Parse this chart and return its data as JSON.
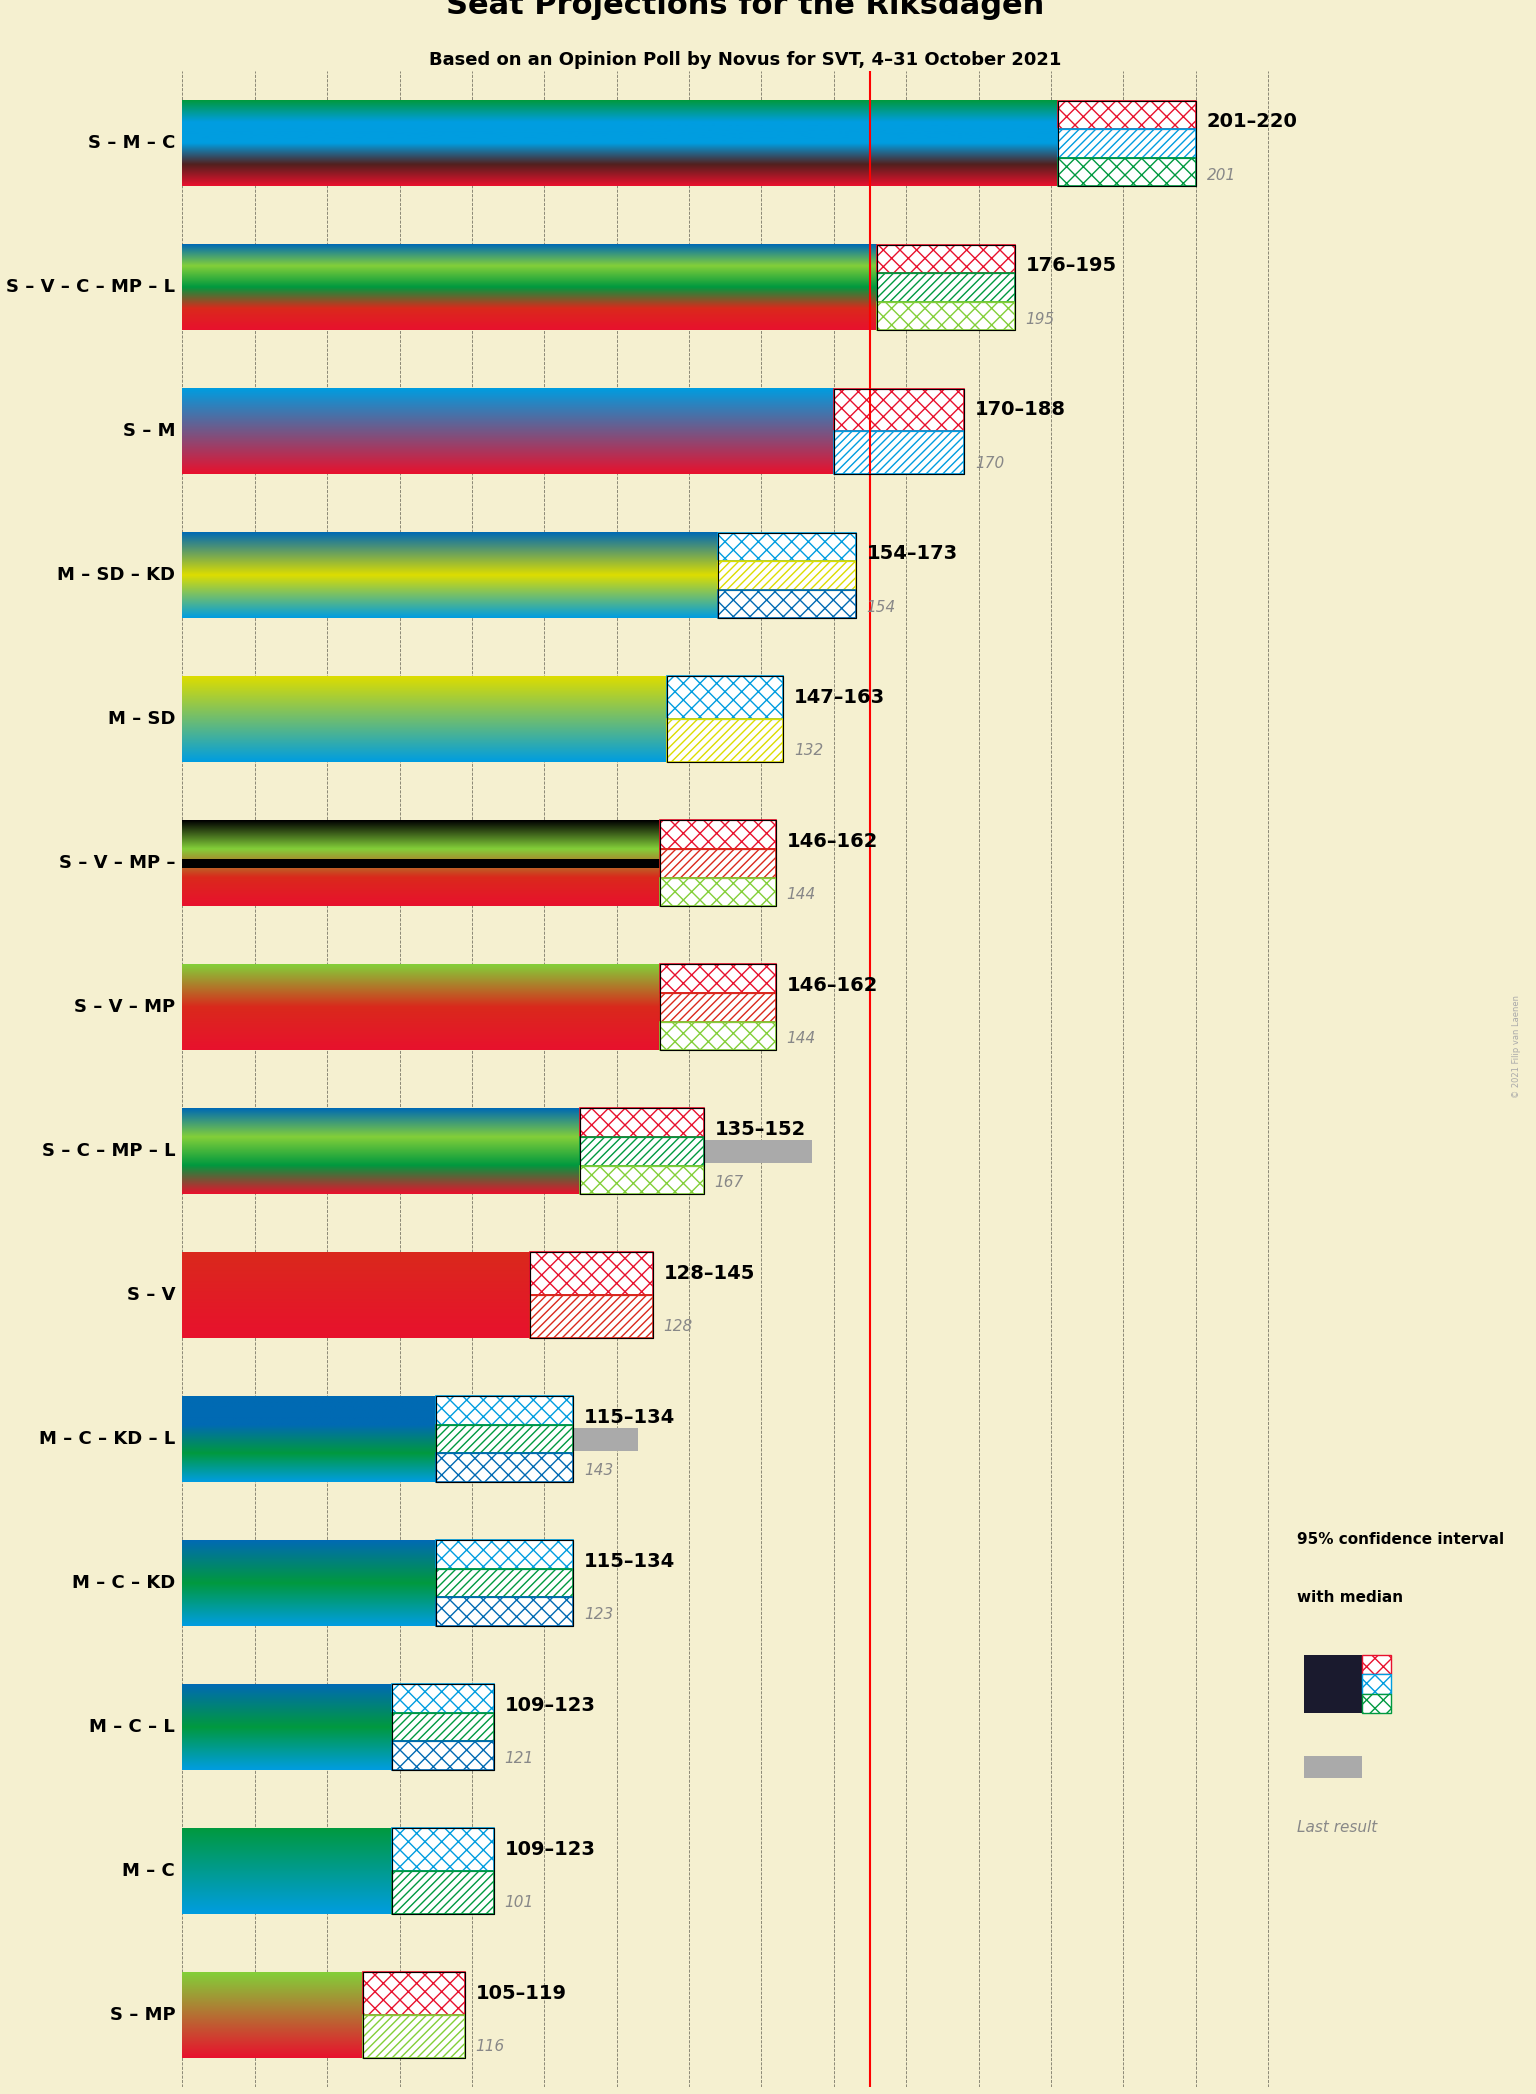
{
  "title": "Seat Projections for the Riksdagen",
  "subtitle": "Based on an Opinion Poll by Novus for SVT, 4–31 October 2021",
  "copyright": "© 2021 Filip van Laenen",
  "background_color": "#f5f0d0",
  "majority_line": 175,
  "x_min": 80,
  "x_max": 230,
  "grid_ticks": [
    80,
    90,
    100,
    110,
    120,
    130,
    140,
    150,
    160,
    170,
    180,
    190,
    200,
    210,
    220,
    230
  ],
  "coalitions": [
    {
      "name": "S – M – C",
      "underline": false,
      "ci_low": 201,
      "ci_high": 220,
      "median": 201,
      "last_result": 201,
      "ci_label": "201–220",
      "party_colors": [
        "#E8112d",
        "#52201E",
        "#009DE0",
        "#009DE0",
        "#00993F"
      ],
      "hatch_colors": [
        "#E8112d",
        "#009DE0",
        "#00993F"
      ]
    },
    {
      "name": "S – V – C – MP – L",
      "underline": true,
      "ci_low": 176,
      "ci_high": 195,
      "median": 195,
      "last_result": 195,
      "ci_label": "176–195",
      "party_colors": [
        "#E8112d",
        "#DA291C",
        "#00993F",
        "#83CF39",
        "#006AB3"
      ],
      "hatch_colors": [
        "#E8112d",
        "#00993F",
        "#83CF39"
      ]
    },
    {
      "name": "S – M",
      "underline": false,
      "ci_low": 170,
      "ci_high": 188,
      "median": 170,
      "last_result": 170,
      "ci_label": "170–188",
      "party_colors": [
        "#E8112d",
        "#009DE0"
      ],
      "hatch_colors": [
        "#E8112d",
        "#009DE0"
      ]
    },
    {
      "name": "M – SD – KD",
      "underline": false,
      "ci_low": 154,
      "ci_high": 173,
      "median": 154,
      "last_result": 154,
      "ci_label": "154–173",
      "party_colors": [
        "#009DE0",
        "#DDDD00",
        "#006AB3"
      ],
      "hatch_colors": [
        "#009DE0",
        "#DDDD00",
        "#006AB3"
      ]
    },
    {
      "name": "M – SD",
      "underline": false,
      "ci_low": 147,
      "ci_high": 163,
      "median": 132,
      "last_result": 132,
      "ci_label": "147–163",
      "party_colors": [
        "#009DE0",
        "#DDDD00"
      ],
      "hatch_colors": [
        "#009DE0",
        "#DDDD00"
      ]
    },
    {
      "name": "S – V – MP –",
      "underline": false,
      "ci_low": 146,
      "ci_high": 162,
      "median": 144,
      "last_result": 144,
      "ci_label": "146–162",
      "party_colors": [
        "#E8112d",
        "#DA291C",
        "#83CF39",
        "#000000"
      ],
      "hatch_colors": [
        "#E8112d",
        "#DA291C",
        "#83CF39"
      ]
    },
    {
      "name": "S – V – MP",
      "underline": false,
      "ci_low": 146,
      "ci_high": 162,
      "median": 144,
      "last_result": 144,
      "ci_label": "146–162",
      "party_colors": [
        "#E8112d",
        "#DA291C",
        "#83CF39"
      ],
      "hatch_colors": [
        "#E8112d",
        "#DA291C",
        "#83CF39"
      ]
    },
    {
      "name": "S – C – MP – L",
      "underline": false,
      "ci_low": 135,
      "ci_high": 152,
      "median": 167,
      "last_result": 167,
      "ci_label": "135–152",
      "party_colors": [
        "#E8112d",
        "#00993F",
        "#83CF39",
        "#006AB3"
      ],
      "hatch_colors": [
        "#E8112d",
        "#00993F",
        "#83CF39"
      ]
    },
    {
      "name": "S – V",
      "underline": false,
      "ci_low": 128,
      "ci_high": 145,
      "median": 128,
      "last_result": 128,
      "ci_label": "128–145",
      "party_colors": [
        "#E8112d",
        "#DA291C"
      ],
      "hatch_colors": [
        "#E8112d",
        "#DA291C"
      ]
    },
    {
      "name": "M – C – KD – L",
      "underline": false,
      "ci_low": 115,
      "ci_high": 134,
      "median": 143,
      "last_result": 143,
      "ci_label": "115–134",
      "party_colors": [
        "#009DE0",
        "#00993F",
        "#006AB3",
        "#006AB3"
      ],
      "hatch_colors": [
        "#009DE0",
        "#00993F",
        "#006AB3"
      ]
    },
    {
      "name": "M – C – KD",
      "underline": false,
      "ci_low": 115,
      "ci_high": 134,
      "median": 123,
      "last_result": 123,
      "ci_label": "115–134",
      "party_colors": [
        "#009DE0",
        "#00993F",
        "#006AB3"
      ],
      "hatch_colors": [
        "#009DE0",
        "#00993F",
        "#006AB3"
      ]
    },
    {
      "name": "M – C – L",
      "underline": false,
      "ci_low": 109,
      "ci_high": 123,
      "median": 121,
      "last_result": 121,
      "ci_label": "109–123",
      "party_colors": [
        "#009DE0",
        "#00993F",
        "#006AB3"
      ],
      "hatch_colors": [
        "#009DE0",
        "#00993F",
        "#006AB3"
      ]
    },
    {
      "name": "M – C",
      "underline": false,
      "ci_low": 109,
      "ci_high": 123,
      "median": 101,
      "last_result": 101,
      "ci_label": "109–123",
      "party_colors": [
        "#009DE0",
        "#00993F"
      ],
      "hatch_colors": [
        "#009DE0",
        "#00993F"
      ]
    },
    {
      "name": "S – MP",
      "underline": true,
      "ci_low": 105,
      "ci_high": 119,
      "median": 116,
      "last_result": 116,
      "ci_label": "105–119",
      "party_colors": [
        "#E8112d",
        "#83CF39"
      ],
      "hatch_colors": [
        "#E8112d",
        "#83CF39"
      ]
    }
  ]
}
